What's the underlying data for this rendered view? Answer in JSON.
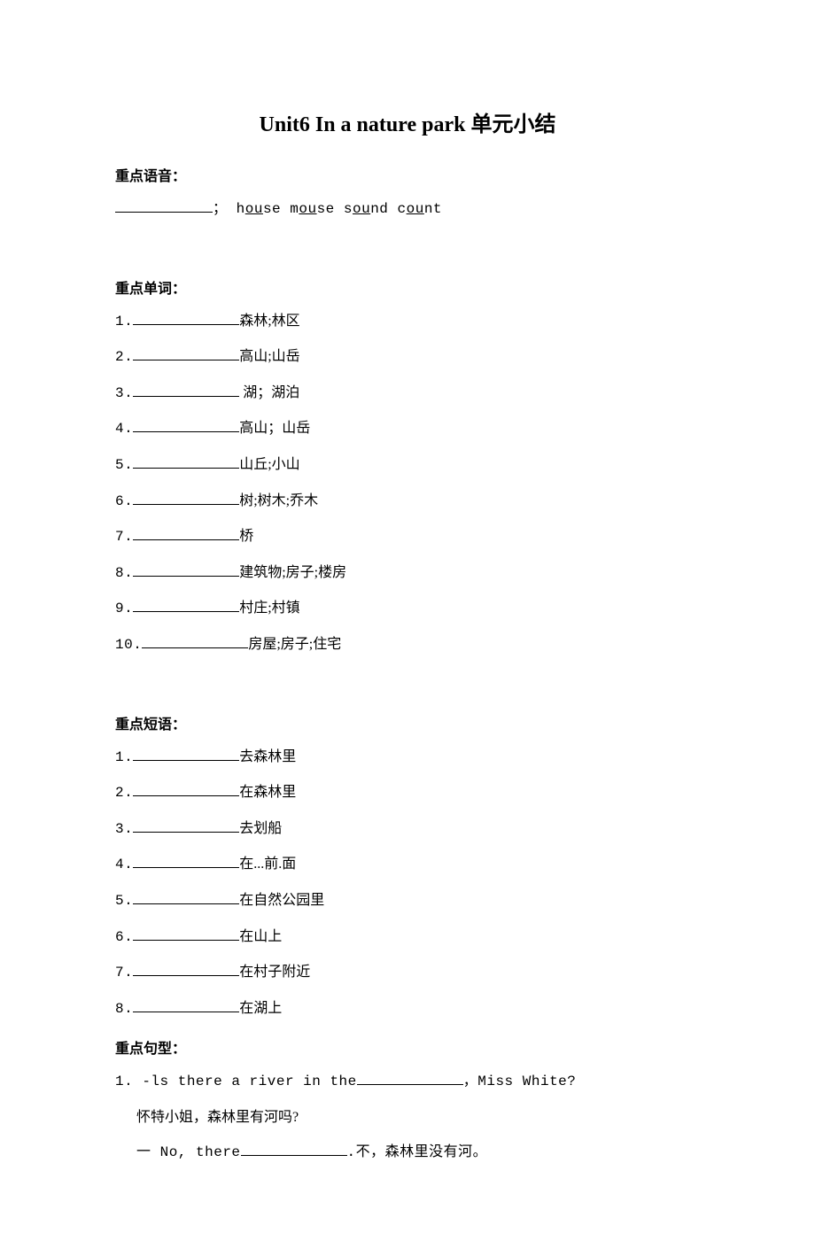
{
  "title_en": "Unit6 In a nature park",
  "title_cn": "单元小结",
  "sections": {
    "phonics": {
      "heading": "重点语音：",
      "examples_prefix": "；",
      "words": [
        {
          "pre": "h",
          "u": "ou",
          "post": "se"
        },
        {
          "pre": "m",
          "u": "ou",
          "post": "se"
        },
        {
          "pre": "s",
          "u": "ou",
          "post": "nd"
        },
        {
          "pre": "c",
          "u": "ou",
          "post": "nt"
        }
      ]
    },
    "vocab": {
      "heading": "重点单词：",
      "items": [
        {
          "num": "1.",
          "cn": "森林;林区"
        },
        {
          "num": "2.",
          "cn": "高山;山岳"
        },
        {
          "num": "3.",
          "cn": " 湖；湖泊"
        },
        {
          "num": "4.",
          "cn": "高山；山岳"
        },
        {
          "num": "5.",
          "cn": "山丘;小山"
        },
        {
          "num": "6.",
          "cn": "树;树木;乔木"
        },
        {
          "num": "7.",
          "cn": "桥"
        },
        {
          "num": "8.",
          "cn": "建筑物;房子;楼房"
        },
        {
          "num": "9.",
          "cn": "村庄;村镇"
        },
        {
          "num": "10.",
          "cn": "房屋;房子;住宅"
        }
      ]
    },
    "phrases": {
      "heading": "重点短语：",
      "items": [
        {
          "num": "1.",
          "cn": "去森林里"
        },
        {
          "num": "2.",
          "cn": "在森林里"
        },
        {
          "num": "3.",
          "cn": "去划船"
        },
        {
          "num": "4.",
          "cn": "在...前.面"
        },
        {
          "num": "5.",
          "cn": "在自然公园里"
        },
        {
          "num": "6.",
          "cn": "在山上"
        },
        {
          "num": "7.",
          "cn": "在村子附近"
        },
        {
          "num": "8.",
          "cn": "在湖上"
        }
      ]
    },
    "sentences": {
      "heading": "重点句型：",
      "item1_num": "1.",
      "item1_en_a": "-ls there a river in the",
      "item1_en_b": "，Miss White?",
      "item1_cn": "怀特小姐，森林里有河吗?",
      "item2_en_a": "一 No, there",
      "item2_en_b": ".不，森林里没有河。"
    }
  }
}
